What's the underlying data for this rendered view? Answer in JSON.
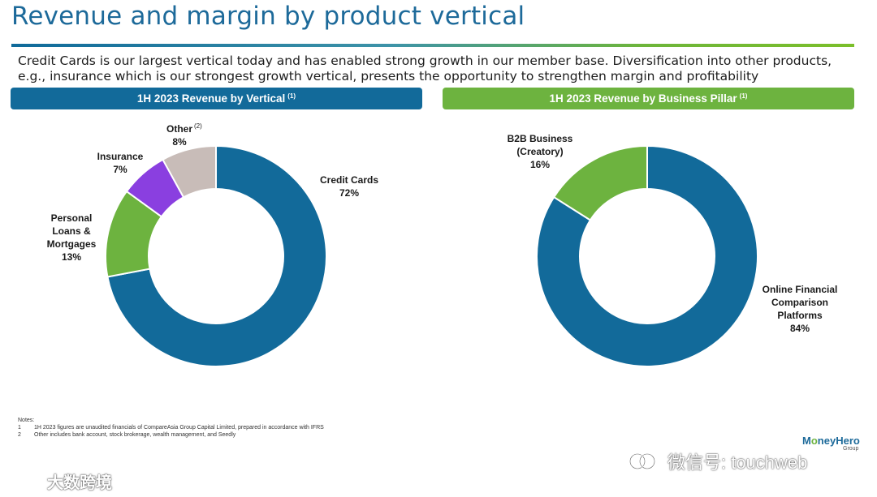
{
  "header": {
    "title": "Revenue and margin by product vertical",
    "subtitle_line1": "Credit Cards is our largest vertical today and has enabled strong growth in our member base. Diversification into other products,",
    "subtitle_line2": "e.g., insurance which is our strongest growth vertical, presents the opportunity to strengthen margin and profitability"
  },
  "colors": {
    "blue": "#126a9a",
    "green": "#6db33f",
    "purple": "#8a3fe0",
    "grey": "#c8bcb8"
  },
  "chart_data": [
    {
      "type": "pie",
      "title": "1H 2023 Revenue by Vertical",
      "title_sup": "(1)",
      "series": [
        {
          "name": "Credit Cards",
          "value": 72,
          "label": "72%",
          "color": "#126a9a"
        },
        {
          "name": "Personal Loans & Mortgages",
          "value": 13,
          "label": "13%",
          "color": "#6db33f"
        },
        {
          "name": "Insurance",
          "value": 7,
          "label": "7%",
          "color": "#8a3fe0"
        },
        {
          "name": "Other",
          "name_sup": "(2)",
          "value": 8,
          "label": "8%",
          "color": "#c8bcb8"
        }
      ]
    },
    {
      "type": "pie",
      "title": "1H 2023 Revenue by Business Pillar",
      "title_sup": "(1)",
      "series": [
        {
          "name": "Online Financial Comparison Platforms",
          "value": 84,
          "label": "84%",
          "color": "#126a9a"
        },
        {
          "name": "B2B Business (Creatory)",
          "value": 16,
          "label": "16%",
          "color": "#6db33f"
        }
      ]
    }
  ],
  "labels": {
    "credit_cards": "Credit Cards",
    "credit_cards_pct": "72%",
    "personal_l1": "Personal",
    "personal_l2": "Loans &",
    "personal_l3": "Mortgages",
    "personal_pct": "13%",
    "insurance": "Insurance",
    "insurance_pct": "7%",
    "other": "Other",
    "other_sup": "(2)",
    "other_pct": "8%",
    "b2b_l1": "B2B Business",
    "b2b_l2": "(Creatory)",
    "b2b_pct": "16%",
    "online_l1": "Online Financial",
    "online_l2": "Comparison",
    "online_l3": "Platforms",
    "online_pct": "84%"
  },
  "notes": {
    "heading": "Notes:",
    "items": [
      {
        "num": "1",
        "text": "1H 2023 figures are unaudited financials of CompareAsia Group Capital Limited, prepared in accordance with IFRS"
      },
      {
        "num": "2",
        "text": "Other includes bank account, stock brokerage, wealth management, and Seedly"
      }
    ]
  },
  "logo": {
    "part1": "M",
    "part2": "o",
    "part3": "neyHero",
    "sub": "Group"
  },
  "watermark": {
    "text": "微信号: touchweb",
    "text2": "大数跨境"
  }
}
